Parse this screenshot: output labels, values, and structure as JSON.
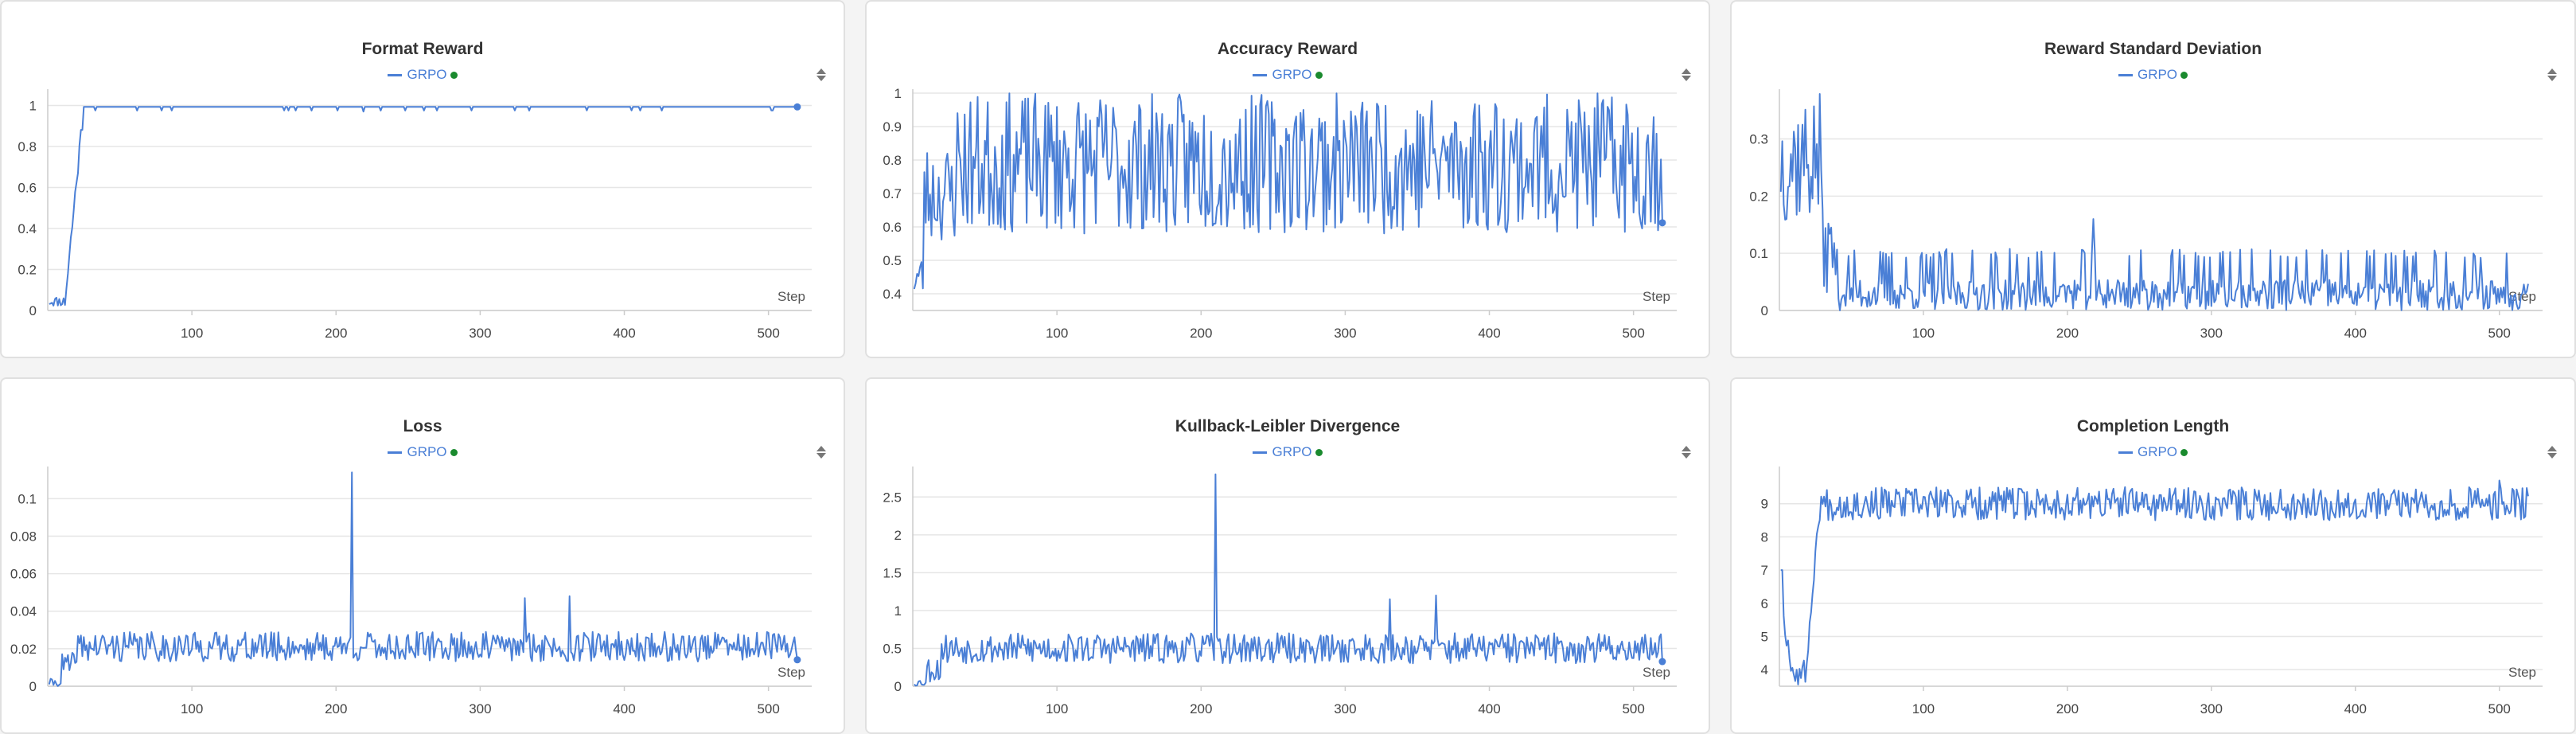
{
  "colors": {
    "series": "#4a7fd6",
    "status_dot": "#1a8a2e",
    "grid": "#e6e6e6",
    "axis": "#cccccc",
    "text": "#444444"
  },
  "icons": {
    "panel_menu": "chart-menu-icon",
    "legend_status": "status-dot-icon"
  },
  "chart_data": [
    {
      "type": "line",
      "title": "Format Reward",
      "series": [
        {
          "name": "GRPO",
          "x_end": 520,
          "shape": "format"
        }
      ],
      "xlabel": "Step",
      "xlim": [
        0,
        530
      ],
      "ylim": [
        0,
        1.06
      ],
      "xticks": [
        100,
        200,
        300,
        400,
        500
      ],
      "yticks": [
        0,
        0.2,
        0.4,
        0.6,
        0.8,
        1
      ],
      "ytick_labels": [
        "0",
        "0.2",
        "0.4",
        "0.6",
        "0.8",
        "1"
      ],
      "end_marker": true,
      "grid": true
    },
    {
      "type": "line",
      "title": "Accuracy Reward",
      "series": [
        {
          "name": "GRPO",
          "x_end": 520,
          "shape": "accuracy"
        }
      ],
      "xlabel": "Step",
      "xlim": [
        0,
        530
      ],
      "ylim": [
        0.35,
        1.0
      ],
      "xticks": [
        100,
        200,
        300,
        400,
        500
      ],
      "yticks": [
        0.4,
        0.5,
        0.6,
        0.7,
        0.8,
        0.9,
        1
      ],
      "ytick_labels": [
        "0.4",
        "0.5",
        "0.6",
        "0.7",
        "0.8",
        "0.9",
        "1"
      ],
      "end_marker": true,
      "grid": true
    },
    {
      "type": "line",
      "title": "Reward Standard Deviation",
      "series": [
        {
          "name": "GRPO",
          "x_end": 520,
          "shape": "rewardstd"
        }
      ],
      "xlabel": "Step",
      "xlim": [
        0,
        530
      ],
      "ylim": [
        0,
        0.38
      ],
      "xticks": [
        100,
        200,
        300,
        400,
        500
      ],
      "yticks": [
        0,
        0.1,
        0.2,
        0.3
      ],
      "ytick_labels": [
        "0",
        "0.1",
        "0.2",
        "0.3"
      ],
      "end_marker": false,
      "grid": true
    },
    {
      "type": "line",
      "title": "Loss",
      "series": [
        {
          "name": "GRPO",
          "x_end": 520,
          "shape": "loss"
        }
      ],
      "xlabel": "Step",
      "xlim": [
        0,
        530
      ],
      "ylim": [
        0,
        0.115
      ],
      "xticks": [
        100,
        200,
        300,
        400,
        500
      ],
      "yticks": [
        0,
        0.02,
        0.04,
        0.06,
        0.08,
        0.1
      ],
      "ytick_labels": [
        "0",
        "0.02",
        "0.04",
        "0.06",
        "0.08",
        "0.1"
      ],
      "end_marker": true,
      "grid": true
    },
    {
      "type": "line",
      "title": "Kullback-Leibler Divergence",
      "series": [
        {
          "name": "GRPO",
          "x_end": 520,
          "shape": "kl"
        }
      ],
      "xlabel": "Step",
      "xlim": [
        0,
        530
      ],
      "ylim": [
        0,
        2.85
      ],
      "xticks": [
        100,
        200,
        300,
        400,
        500
      ],
      "yticks": [
        0,
        0.5,
        1,
        1.5,
        2,
        2.5
      ],
      "ytick_labels": [
        "0",
        "0.5",
        "1",
        "1.5",
        "2",
        "2.5"
      ],
      "end_marker": true,
      "grid": true
    },
    {
      "type": "line",
      "title": "Completion Length",
      "series": [
        {
          "name": "GRPO",
          "x_end": 520,
          "shape": "length"
        }
      ],
      "xlabel": "Step",
      "xlim": [
        0,
        530
      ],
      "ylim": [
        3.5,
        10
      ],
      "xticks": [
        100,
        200,
        300,
        400,
        500
      ],
      "yticks": [
        4,
        5,
        6,
        7,
        8,
        9
      ],
      "ytick_labels": [
        "4",
        "5",
        "6",
        "7",
        "8",
        "9"
      ],
      "end_marker": false,
      "grid": true
    }
  ]
}
